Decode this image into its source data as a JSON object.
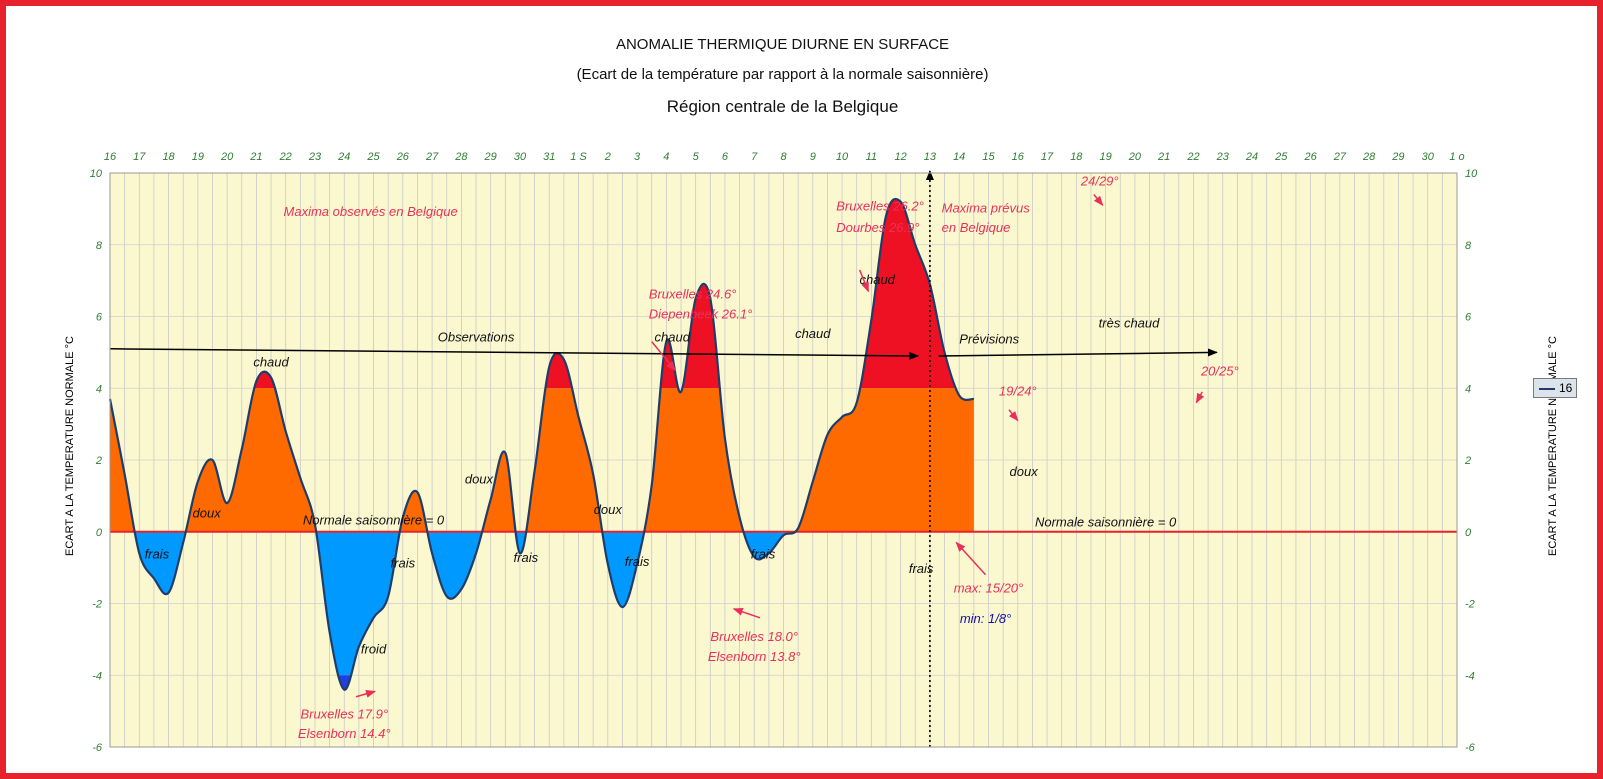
{
  "colors": {
    "frame": "#e8222c",
    "plot_bg": "#fbf8cf",
    "warm": "#ff6a00",
    "hot": "#ee1124",
    "cool": "#0099ff",
    "cold": "#1f3fe0",
    "curve": "#1f3d6b",
    "normal_line": "#e8222c",
    "annotation": "#e8305a",
    "min_text": "#1010a8",
    "tick_label": "#2e7d32"
  },
  "header": {
    "title": "ANOMALIE THERMIQUE DIURNE EN SURFACE",
    "subtitle": "(Ecart de la température par rapport à la normale saisonnière)",
    "region": "Région centrale de la Belgique"
  },
  "legend": {
    "label": "16"
  },
  "chart_data": {
    "type": "area",
    "title": "ANOMALIE THERMIQUE DIURNE EN SURFACE",
    "ylabel": "ECART A LA TEMPERATURE NORMALE  °C",
    "ylabel_right": "ECART A LA TEMPERATURE NORMALE  °C",
    "ylim": [
      -6,
      10
    ],
    "yticks": [
      "-6",
      "-4",
      "-2",
      "0",
      "2",
      "4",
      "6",
      "8",
      "10"
    ],
    "xtick_labels": [
      "16",
      "17",
      "18",
      "19",
      "20",
      "21",
      "22",
      "23",
      "24",
      "25",
      "26",
      "27",
      "28",
      "29",
      "30",
      "31",
      "1 S",
      "2",
      "3",
      "4",
      "5",
      "6",
      "7",
      "8",
      "9",
      "10",
      "11",
      "12",
      "13",
      "14",
      "15",
      "16",
      "17",
      "18",
      "19",
      "20",
      "21",
      "22",
      "23",
      "24",
      "25",
      "26",
      "27",
      "28",
      "29",
      "30",
      "1 o"
    ],
    "grid": true,
    "legend_position": "right",
    "series": [
      {
        "name": "16",
        "x": [
          0,
          0.5,
          1,
          1.5,
          2,
          2.5,
          3,
          3.5,
          4,
          4.5,
          5,
          5.5,
          6,
          6.5,
          7,
          7.5,
          8,
          8.5,
          9,
          9.5,
          10,
          10.5,
          11,
          11.5,
          12,
          12.5,
          13,
          13.5,
          14,
          14.5,
          15,
          15.5,
          16,
          16.5,
          17,
          17.5,
          18,
          18.5,
          19,
          19.5,
          20,
          20.5,
          21,
          21.5,
          22,
          22.5,
          23,
          23.5,
          24,
          24.5,
          25,
          25.5,
          26,
          26.5,
          27,
          27.5,
          28,
          28.5,
          29,
          29.5,
          30,
          30.5,
          31,
          31.5,
          32,
          32.5,
          33,
          33.5,
          34,
          34.5,
          35,
          35.5,
          36,
          36.5,
          37,
          37.5,
          38,
          38.5,
          39
        ],
        "values": [
          3.7,
          1.6,
          -0.6,
          -1.3,
          -1.7,
          -0.3,
          1.4,
          2.0,
          0.8,
          2.3,
          4.2,
          4.3,
          2.8,
          1.5,
          0.2,
          -2.8,
          -4.4,
          -3.2,
          -2.4,
          -1.8,
          0.4,
          1.1,
          -0.6,
          -1.8,
          -1.6,
          -0.6,
          0.9,
          2.2,
          -0.6,
          1.7,
          4.6,
          4.8,
          3.2,
          1.6,
          -0.9,
          -2.1,
          -0.9,
          1.3,
          5.3,
          3.9,
          6.5,
          6.5,
          2.6,
          0.4,
          -0.7,
          -0.6,
          -0.1,
          0.1,
          1.4,
          2.7,
          3.2,
          3.6,
          5.9,
          8.8,
          9.2,
          8.0,
          6.9,
          5.0,
          3.8,
          3.7,
          null,
          null,
          null,
          null,
          null,
          null,
          null,
          null,
          null,
          null,
          null,
          null,
          null,
          null,
          null,
          null,
          null,
          null,
          null
        ]
      }
    ],
    "normal_value": 0,
    "forecast_start_x": 28,
    "categories_note": "",
    "annotations": {
      "maxima_obs": "Maxima observés en Belgique",
      "maxima_prev_1": "Maxima prévus",
      "maxima_prev_2": "en Belgique",
      "observations": "Observations",
      "previsions": "Prévisions",
      "normale_1": "Normale saisonnière = 0",
      "normale_2": "Normale saisonnière = 0",
      "bx_246": "Bruxelles 24.6°",
      "diep_261": "Diepenbeek 26.1°",
      "bx_262": "Bruxelles 26.2°",
      "dourbes_269": "Dourbes 26.9°",
      "bx_179": "Bruxelles 17.9°",
      "elsen_144": "Elsenborn 14.4°",
      "bx_180": "Bruxelles 18.0°",
      "elsen_138": "Elsenborn 13.8°",
      "v2429": "24/29°",
      "v1924": "19/24°",
      "v2025": "20/25°",
      "max_1520": "max: 15/20°",
      "min_18": "min: 1/8°",
      "chaud": "chaud",
      "tres_chaud": "très chaud",
      "doux": "doux",
      "frais": "frais",
      "froid": "froid"
    }
  }
}
